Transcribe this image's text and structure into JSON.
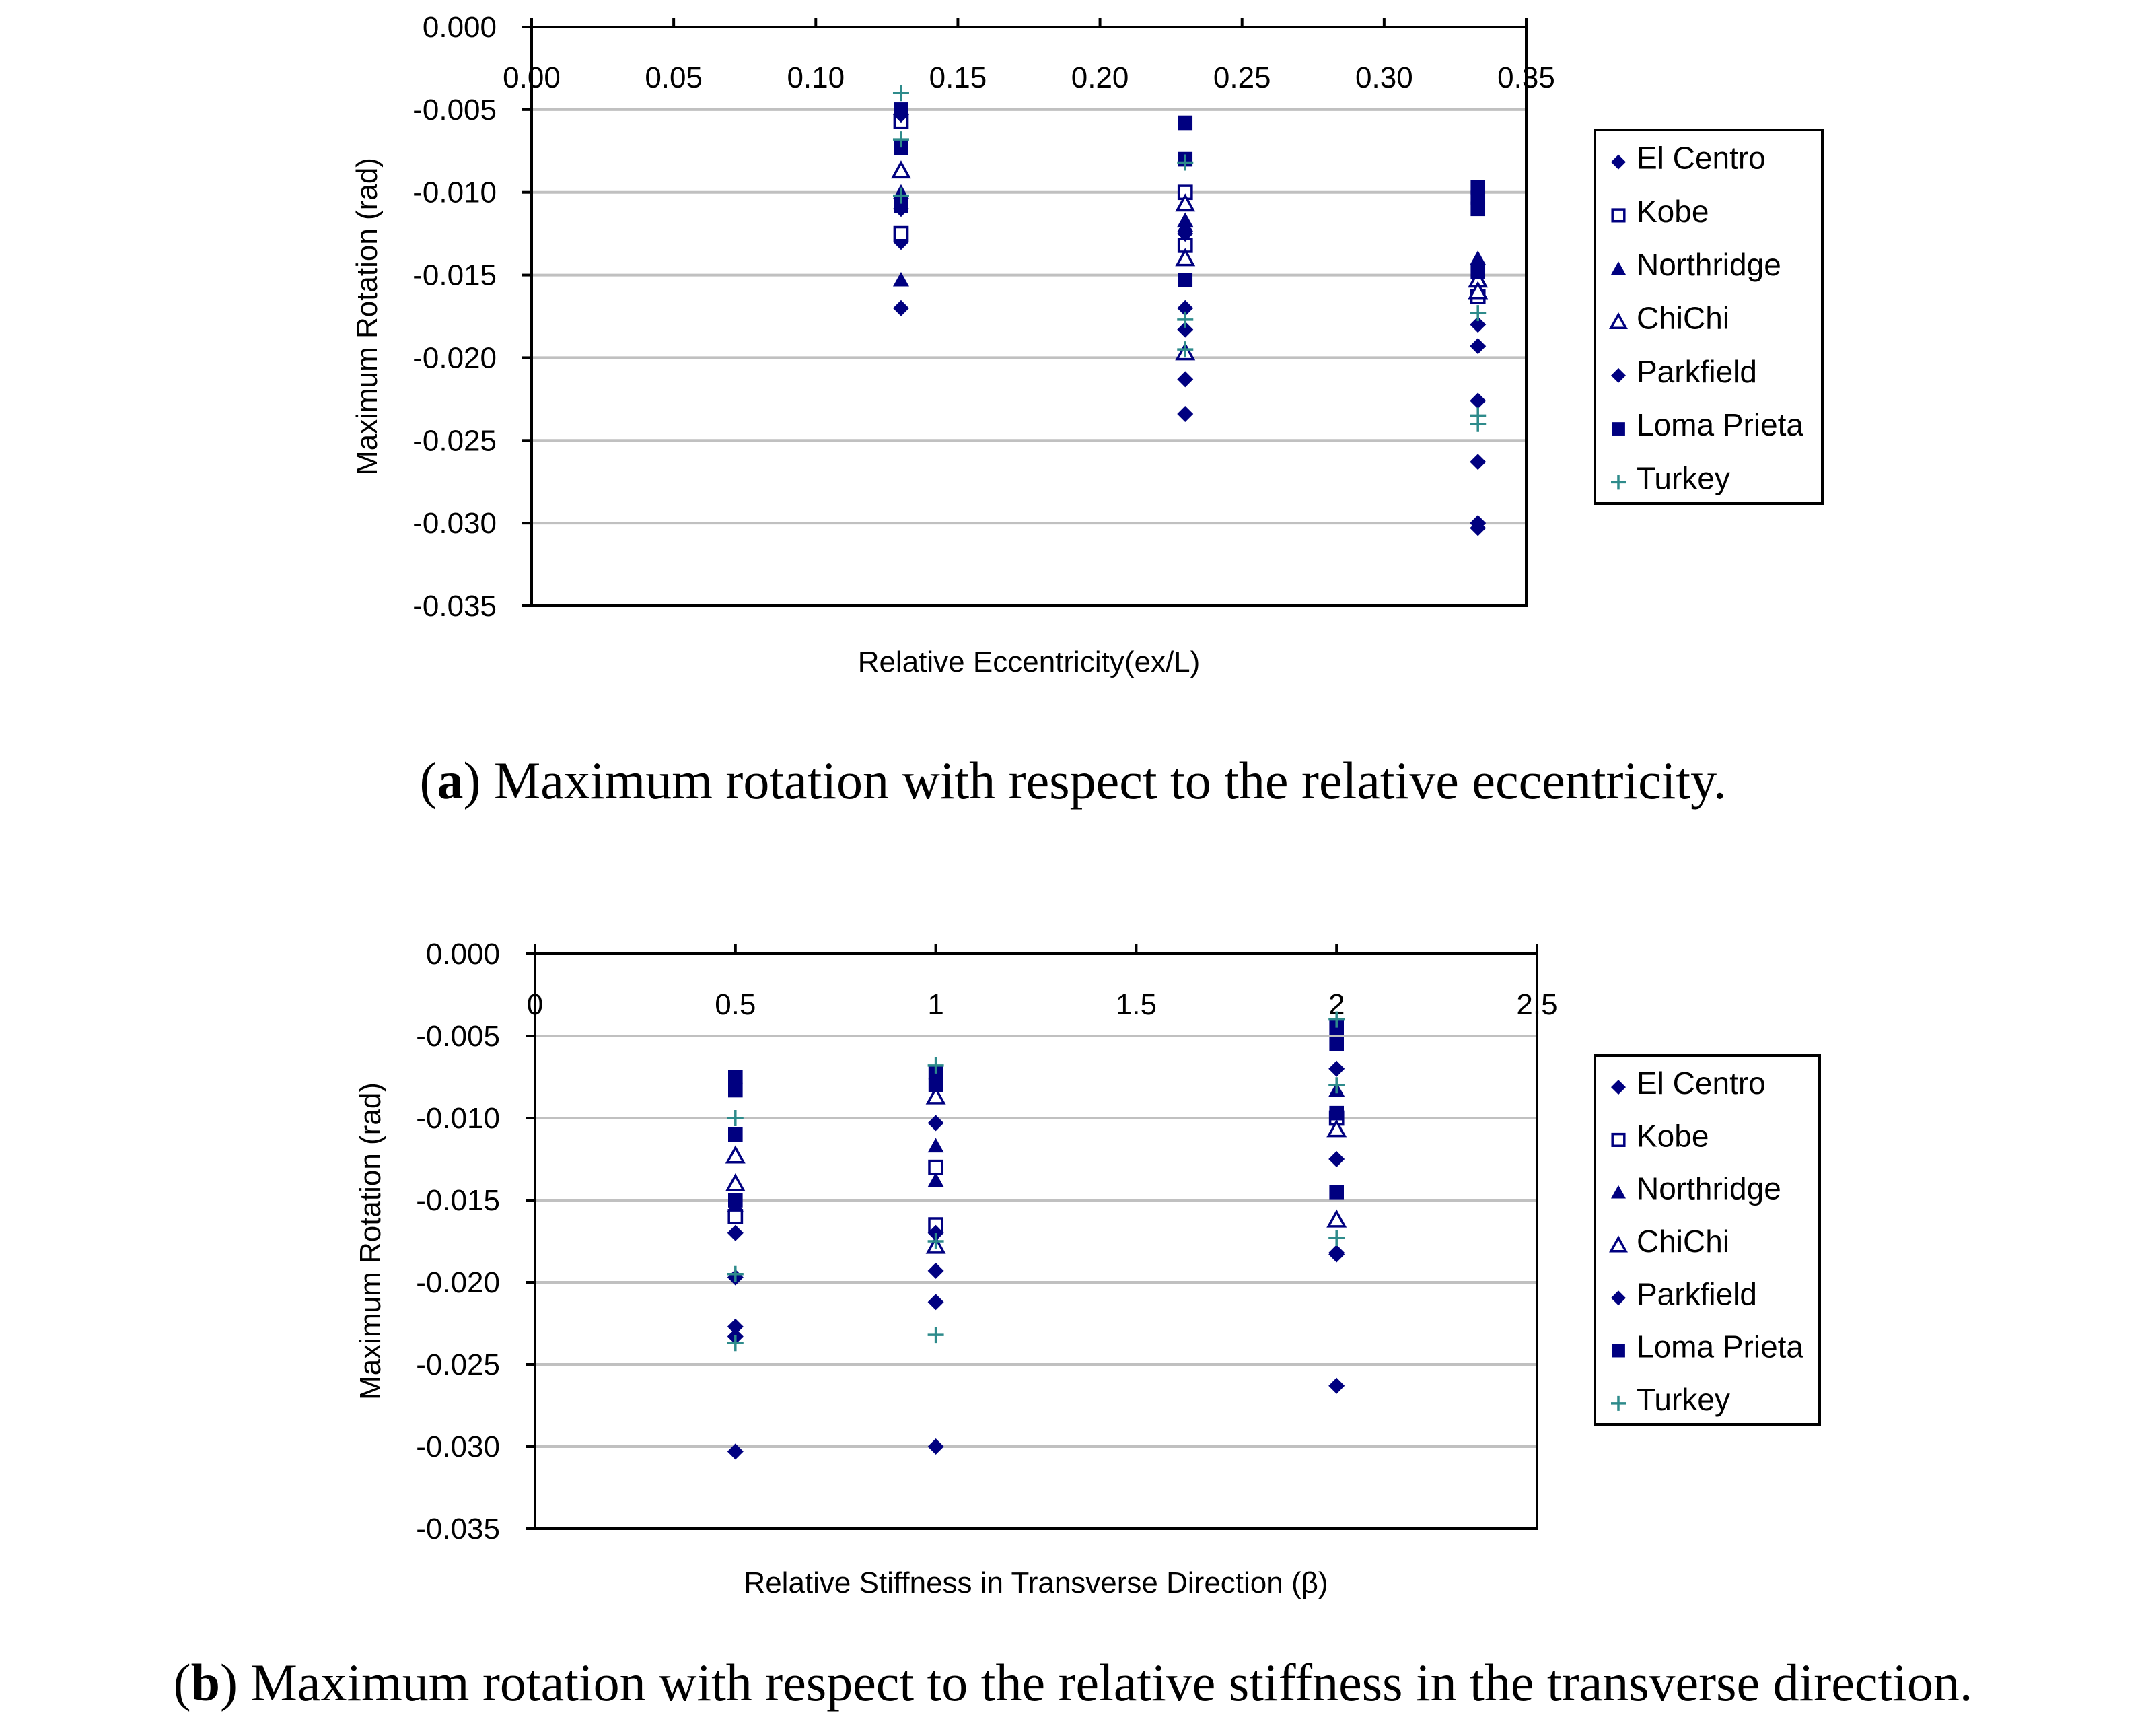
{
  "colors": {
    "navy": "#000080",
    "teal": "#2E8B8B",
    "grid": "#C0C0C0",
    "axis": "#000000"
  },
  "legend_labels": [
    {
      "label": "El Centro",
      "marker": "diamond-filled-icon",
      "color": "#000080"
    },
    {
      "label": "Kobe",
      "marker": "square-open-icon",
      "color": "#000080"
    },
    {
      "label": "Northridge",
      "marker": "triangle-filled-icon",
      "color": "#000080"
    },
    {
      "label": "ChiChi",
      "marker": "triangle-open-icon",
      "color": "#000080"
    },
    {
      "label": "Parkfield",
      "marker": "diamond-filled-icon",
      "color": "#000080"
    },
    {
      "label": "Loma Prieta",
      "marker": "square-filled-icon",
      "color": "#000080"
    },
    {
      "label": "Turkey",
      "marker": "plus-icon",
      "color": "#2E8B8B"
    }
  ],
  "captions": {
    "a_label": "a",
    "a_text": ") Maximum rotation with respect to the relative eccentricity.",
    "b_label": "b",
    "b_text": ") Maximum rotation with respect to the relative stiffness in the transverse direction."
  },
  "chart_data": [
    {
      "id": "chart-a",
      "type": "scatter",
      "title": "",
      "xlabel": "Relative Eccentricity(ex/L)",
      "ylabel": "Maximum Rotation (rad)",
      "xlim": [
        0,
        0.35
      ],
      "ylim": [
        -0.035,
        0.0
      ],
      "xticks": [
        "0.00",
        "0.05",
        "0.10",
        "0.15",
        "0.20",
        "0.25",
        "0.30",
        "0.35"
      ],
      "yticks": [
        "0.000",
        "-0.005",
        "-0.010",
        "-0.015",
        "-0.020",
        "-0.025",
        "-0.030",
        "-0.035"
      ],
      "grid": true,
      "legend": "right",
      "series": [
        {
          "name": "El Centro",
          "x": [
            0.13,
            0.13,
            0.23,
            0.23,
            0.23,
            0.333,
            0.333,
            0.333,
            0.333
          ],
          "y": [
            -0.013,
            -0.017,
            -0.017,
            -0.0213,
            -0.0234,
            -0.018,
            -0.0226,
            -0.0263,
            -0.0303
          ]
        },
        {
          "name": "Kobe",
          "x": [
            0.13,
            0.13,
            0.23,
            0.23,
            0.333
          ],
          "y": [
            -0.0057,
            -0.0125,
            -0.01,
            -0.0132,
            -0.0163
          ]
        },
        {
          "name": "Northridge",
          "x": [
            0.13,
            0.13,
            0.23,
            0.23,
            0.333,
            0.333
          ],
          "y": [
            -0.01,
            -0.0153,
            -0.012,
            -0.0117,
            -0.014,
            -0.0153
          ]
        },
        {
          "name": "ChiChi",
          "x": [
            0.13,
            0.23,
            0.23,
            0.23,
            0.333,
            0.333
          ],
          "y": [
            -0.0087,
            -0.0107,
            -0.014,
            -0.0197,
            -0.0153,
            -0.016
          ]
        },
        {
          "name": "Parkfield",
          "x": [
            0.13,
            0.13,
            0.23,
            0.23,
            0.333,
            0.333
          ],
          "y": [
            -0.0053,
            -0.011,
            -0.0125,
            -0.0183,
            -0.0193,
            -0.03
          ]
        },
        {
          "name": "Loma Prieta",
          "x": [
            0.13,
            0.13,
            0.13,
            0.23,
            0.23,
            0.23,
            0.333,
            0.333,
            0.333,
            0.333
          ],
          "y": [
            -0.005,
            -0.0073,
            -0.0108,
            -0.0058,
            -0.008,
            -0.0153,
            -0.0097,
            -0.0103,
            -0.011,
            -0.0148
          ]
        },
        {
          "name": "Turkey",
          "x": [
            0.13,
            0.13,
            0.13,
            0.23,
            0.23,
            0.23,
            0.333,
            0.333,
            0.333
          ],
          "y": [
            -0.004,
            -0.0068,
            -0.0102,
            -0.0082,
            -0.0177,
            -0.0195,
            -0.0173,
            -0.0235,
            -0.024
          ]
        }
      ]
    },
    {
      "id": "chart-b",
      "type": "scatter",
      "title": "",
      "xlabel": "Relative Stiffness in Transverse Direction (β)",
      "ylabel": "Maximum Rotation (rad)",
      "xlim": [
        0,
        2.5
      ],
      "ylim": [
        -0.035,
        0.0
      ],
      "xticks": [
        "0",
        "0.5",
        "1",
        "1.5",
        "2",
        "2.5"
      ],
      "yticks": [
        "0.000",
        "-0.005",
        "-0.010",
        "-0.015",
        "-0.020",
        "-0.025",
        "-0.030",
        "-0.035"
      ],
      "grid": true,
      "legend": "right",
      "series": [
        {
          "name": "El Centro",
          "x": [
            0.5,
            0.5,
            0.5,
            1,
            1,
            1,
            2,
            2,
            2
          ],
          "y": [
            -0.017,
            -0.0227,
            -0.0303,
            -0.0193,
            -0.0212,
            -0.03,
            -0.0125,
            -0.0182,
            -0.0263
          ]
        },
        {
          "name": "Kobe",
          "x": [
            0.5,
            1,
            1,
            2
          ],
          "y": [
            -0.016,
            -0.013,
            -0.0165,
            -0.01
          ]
        },
        {
          "name": "Northridge",
          "x": [
            0.5,
            1,
            1,
            2
          ],
          "y": [
            -0.0153,
            -0.0117,
            -0.0138,
            -0.0083
          ]
        },
        {
          "name": "ChiChi",
          "x": [
            0.5,
            0.5,
            1,
            1,
            2,
            2
          ],
          "y": [
            -0.0123,
            -0.014,
            -0.0087,
            -0.0178,
            -0.0107,
            -0.0162
          ]
        },
        {
          "name": "Parkfield",
          "x": [
            0.5,
            0.5,
            1,
            1,
            2,
            2
          ],
          "y": [
            -0.0197,
            -0.0233,
            -0.0103,
            -0.017,
            -0.007,
            -0.0183
          ]
        },
        {
          "name": "Loma Prieta",
          "x": [
            0.5,
            0.5,
            0.5,
            0.5,
            1,
            1,
            2,
            2,
            2,
            2
          ],
          "y": [
            -0.0075,
            -0.0083,
            -0.011,
            -0.015,
            -0.0072,
            -0.008,
            -0.0045,
            -0.0055,
            -0.0097,
            -0.0145
          ]
        },
        {
          "name": "Turkey",
          "x": [
            0.5,
            0.5,
            0.5,
            1,
            1,
            1,
            2,
            2,
            2
          ],
          "y": [
            -0.01,
            -0.0195,
            -0.0237,
            -0.0068,
            -0.0175,
            -0.0232,
            -0.004,
            -0.008,
            -0.0173
          ]
        }
      ]
    }
  ]
}
